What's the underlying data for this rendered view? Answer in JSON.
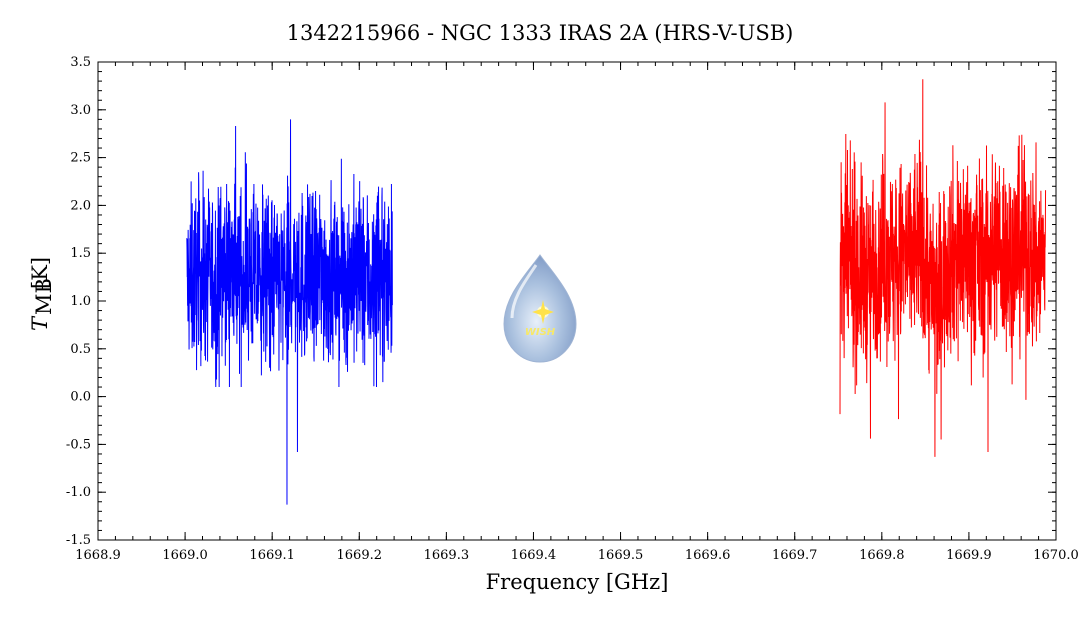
{
  "chart_data": {
    "type": "line",
    "title": "1342215966 - NGC 1333 IRAS 2A (HRS-V-USB)",
    "xlabel": "Frequency [GHz]",
    "ylabel_main": "T",
    "ylabel_sub": "MB",
    "ylabel_unit": "[K]",
    "xlim": [
      1668.9,
      1670.0
    ],
    "ylim": [
      -1.5,
      3.5
    ],
    "x_ticks": [
      1668.9,
      1669.0,
      1669.1,
      1669.2,
      1669.3,
      1669.4,
      1669.5,
      1669.6,
      1669.7,
      1669.8,
      1669.9,
      1670.0
    ],
    "x_tick_labels": [
      "1668.9",
      "1669.0",
      "1669.1",
      "1669.2",
      "1669.3",
      "1669.4",
      "1669.5",
      "1669.6",
      "1669.7",
      "1669.8",
      "1669.9",
      "1670.0"
    ],
    "y_ticks": [
      -1.5,
      -1.0,
      -0.5,
      0.0,
      0.5,
      1.0,
      1.5,
      2.0,
      2.5,
      3.0,
      3.5
    ],
    "y_tick_labels": [
      "-1.5",
      "-1.0",
      "-0.5",
      "0.0",
      "0.5",
      "1.0",
      "1.5",
      "2.0",
      "2.5",
      "3.0",
      "3.5"
    ],
    "grid": false,
    "series": [
      {
        "color": "#0000ff",
        "x": [
          1669.005,
          1669.015,
          1669.025,
          1669.035,
          1669.045,
          1669.055,
          1669.065,
          1669.075,
          1669.085,
          1669.095,
          1669.105,
          1669.115,
          1669.125,
          1669.135,
          1669.145,
          1669.155,
          1669.165,
          1669.175,
          1669.185,
          1669.195,
          1669.205,
          1669.215,
          1669.225,
          1669.235
        ],
        "y": [
          1.2,
          1.3,
          1.25,
          1.2,
          1.35,
          1.3,
          1.25,
          1.3,
          1.2,
          1.25,
          1.2,
          1.15,
          1.3,
          1.25,
          1.2,
          1.3,
          1.25,
          1.2,
          1.25,
          1.3,
          1.25,
          1.2,
          1.3,
          1.25
        ],
        "noise": 0.45,
        "envelope": [
          0.1,
          2.9
        ],
        "extremes": [
          [
            1669.117,
            -1.13
          ],
          [
            1669.121,
            2.9
          ],
          [
            1669.129,
            -0.58
          ],
          [
            1669.058,
            2.83
          ]
        ]
      },
      {
        "color": "#ff0000",
        "x": [
          1669.755,
          1669.765,
          1669.775,
          1669.785,
          1669.795,
          1669.805,
          1669.815,
          1669.825,
          1669.835,
          1669.845,
          1669.855,
          1669.865,
          1669.875,
          1669.885,
          1669.895,
          1669.905,
          1669.915,
          1669.925,
          1669.935,
          1669.945,
          1669.955,
          1669.965,
          1669.975,
          1669.985
        ],
        "y": [
          1.4,
          1.35,
          1.3,
          1.25,
          1.45,
          1.5,
          1.4,
          1.45,
          1.55,
          1.6,
          1.2,
          1.0,
          1.45,
          1.5,
          1.55,
          1.4,
          1.45,
          1.5,
          1.6,
          1.45,
          1.5,
          1.55,
          1.4,
          1.45
        ],
        "noise": 0.5,
        "envelope": [
          -0.63,
          3.32
        ],
        "extremes": [
          [
            1669.847,
            3.32
          ],
          [
            1669.861,
            -0.63
          ],
          [
            1669.787,
            -0.44
          ],
          [
            1669.922,
            -0.58
          ]
        ]
      }
    ],
    "watermark_text": "WISH"
  }
}
